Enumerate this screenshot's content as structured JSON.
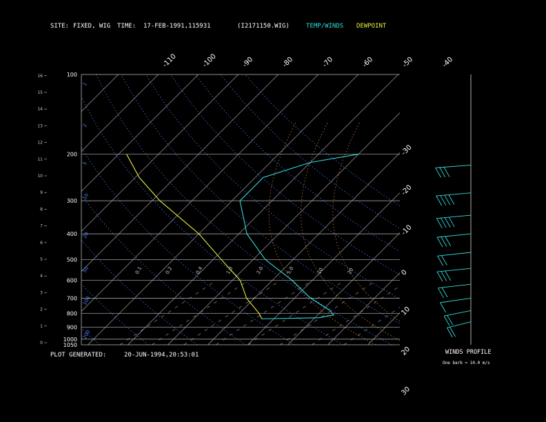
{
  "header": {
    "site_label": "SITE:",
    "site_value": "FIXED, WIG",
    "time_label": "TIME:",
    "time_value": "17-FEB-1991,115931",
    "file_id": "(I2171150.WIG)",
    "legend_temp": "TEMP/WINDS",
    "legend_dew": "DEWPOINT",
    "temp_color": "#33dddd",
    "dew_color": "#f0f03c"
  },
  "footer": {
    "generated_label": "PLOT GENERATED:",
    "generated_value": "20-JUN-1994,20:53:01",
    "winds_title": "WINDS PROFILE",
    "barb_note": "One barb = 10.0 m/s"
  },
  "chart_data": {
    "type": "line",
    "title": "",
    "pressure_levels": [
      100,
      200,
      300,
      400,
      500,
      600,
      700,
      800,
      900,
      1000,
      1050
    ],
    "height_km_ticks": [
      0,
      1,
      2,
      3,
      4,
      5,
      6,
      7,
      8,
      9,
      10,
      11,
      12,
      13,
      14,
      15,
      16
    ],
    "isotherm_top_labels": [
      "-110",
      "-100",
      "-90",
      "-80",
      "-70",
      "-60",
      "-50",
      "-40"
    ],
    "isotherm_right_labels": [
      "-30",
      "-20",
      "-10",
      "0",
      "10",
      "20",
      "30"
    ],
    "mixing_ratio_labels": [
      "0.1",
      "0.2",
      "0.4",
      "1.0",
      "2.0",
      "5.0",
      "10",
      "20"
    ],
    "dry_adiabat_labels": [
      "1",
      "2",
      "5",
      "10",
      "20",
      "50",
      "100",
      "200"
    ],
    "series": [
      {
        "name": "TEMP/WINDS",
        "points": [
          {
            "p": 200,
            "t": -40
          },
          {
            "p": 215,
            "t": -50
          },
          {
            "p": 245,
            "t": -58
          },
          {
            "p": 270,
            "t": -58
          },
          {
            "p": 300,
            "t": -58
          },
          {
            "p": 400,
            "t": -48
          },
          {
            "p": 500,
            "t": -37
          },
          {
            "p": 600,
            "t": -25
          },
          {
            "p": 700,
            "t": -16
          },
          {
            "p": 780,
            "t": -8
          },
          {
            "p": 810,
            "t": -6
          },
          {
            "p": 830,
            "t": -9
          },
          {
            "p": 838,
            "t": -23
          }
        ]
      },
      {
        "name": "DEWPOINT",
        "points": [
          {
            "p": 200,
            "t": -98
          },
          {
            "p": 245,
            "t": -89
          },
          {
            "p": 300,
            "t": -78
          },
          {
            "p": 400,
            "t": -60
          },
          {
            "p": 500,
            "t": -48
          },
          {
            "p": 600,
            "t": -38
          },
          {
            "p": 700,
            "t": -32
          },
          {
            "p": 800,
            "t": -25
          },
          {
            "p": 838,
            "t": -23
          }
        ]
      }
    ],
    "winds": [
      {
        "p": 220,
        "speed": 25,
        "dir": 250
      },
      {
        "p": 280,
        "speed": 40,
        "dir": 260
      },
      {
        "p": 340,
        "speed": 35,
        "dir": 265
      },
      {
        "p": 400,
        "speed": 25,
        "dir": 270
      },
      {
        "p": 470,
        "speed": 20,
        "dir": 275
      },
      {
        "p": 540,
        "speed": 25,
        "dir": 270
      },
      {
        "p": 620,
        "speed": 15,
        "dir": 280
      },
      {
        "p": 700,
        "speed": 10,
        "dir": 300
      },
      {
        "p": 780,
        "speed": 15,
        "dir": 330
      },
      {
        "p": 860,
        "speed": 20,
        "dir": 350
      }
    ]
  }
}
